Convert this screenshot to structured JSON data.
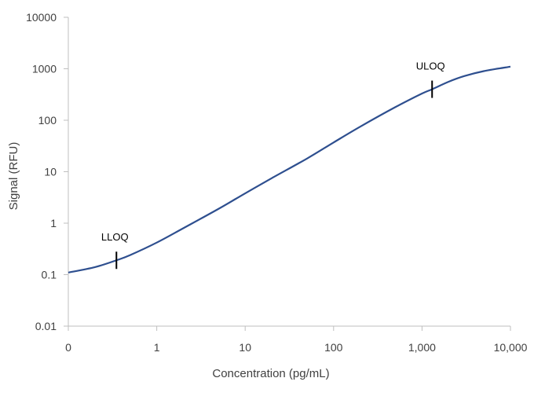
{
  "chart_data": {
    "type": "line",
    "xlabel": "Concentration (pg/mL)",
    "ylabel": "Signal (RFU)",
    "x_scale": "log",
    "y_scale": "log",
    "x_ticks": [
      "0",
      "1",
      "10",
      "100",
      "1,000",
      "10,000"
    ],
    "y_ticks": [
      "10000",
      "1000",
      "100",
      "10",
      "1",
      "0.1",
      "0.01"
    ],
    "xlim": [
      0.1,
      10000
    ],
    "ylim": [
      0.01,
      10000
    ],
    "grid": false,
    "legend": "none",
    "line_color": "#2e4f8f",
    "series": [
      {
        "x": [
          0.1,
          0.2,
          0.35,
          0.5,
          1,
          2,
          5,
          10,
          20,
          50,
          100,
          200,
          500,
          1000,
          1300,
          2000,
          3000,
          5000,
          10000
        ],
        "y": [
          0.11,
          0.14,
          0.19,
          0.24,
          0.42,
          0.8,
          1.9,
          3.8,
          7.5,
          18,
          37,
          75,
          180,
          330,
          400,
          560,
          720,
          900,
          1100
        ]
      }
    ],
    "annotations": [
      {
        "label": "LLOQ",
        "x": 0.35,
        "y": 0.19
      },
      {
        "label": "ULOQ",
        "x": 1300,
        "y": 400
      }
    ]
  }
}
